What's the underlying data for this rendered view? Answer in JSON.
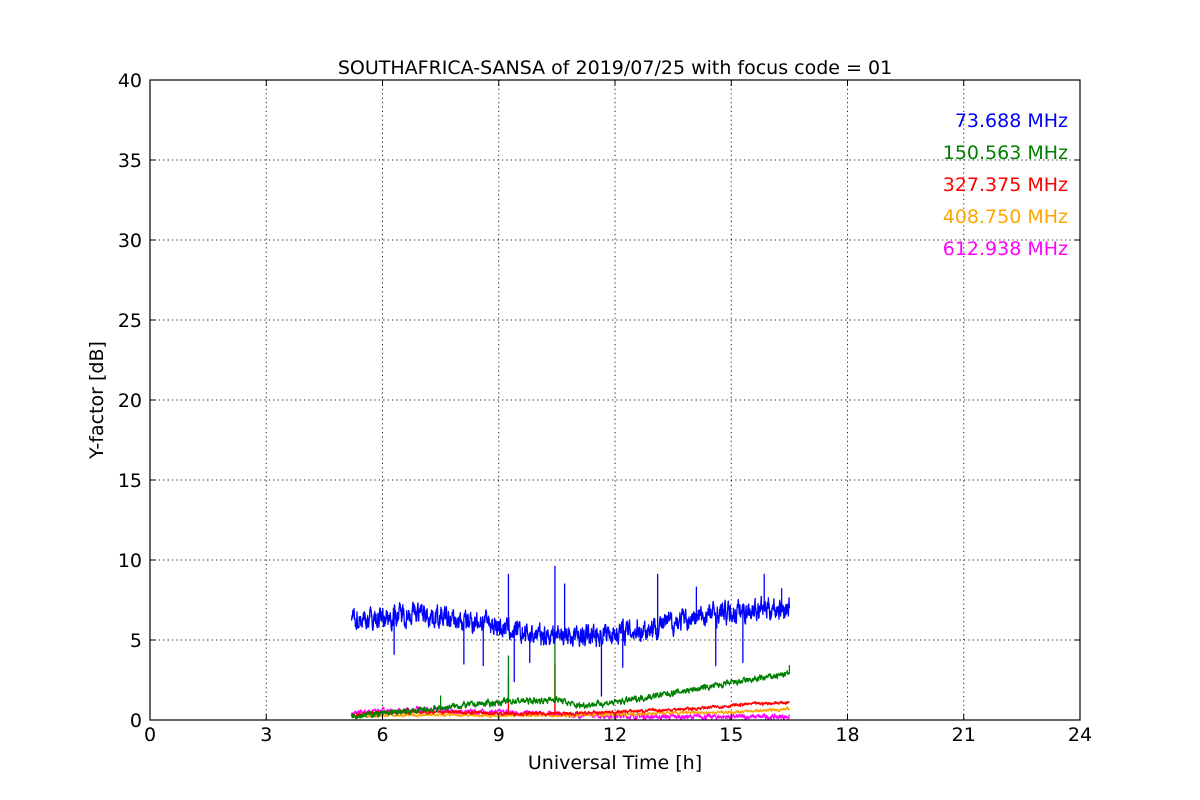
{
  "chart_data": {
    "type": "line",
    "title": "SOUTHAFRICA-SANSA of 2019/07/25 with focus code = 01",
    "xlabel": "Universal Time [h]",
    "ylabel": "Y-factor [dB]",
    "xlim": [
      0,
      24
    ],
    "ylim": [
      0,
      40
    ],
    "xticks": [
      0,
      3,
      6,
      9,
      12,
      15,
      18,
      21,
      24
    ],
    "yticks": [
      0,
      5,
      10,
      15,
      20,
      25,
      30,
      35,
      40
    ],
    "xtick_labels": [
      "0",
      "3",
      "6",
      "9",
      "12",
      "15",
      "18",
      "21",
      "24"
    ],
    "ytick_labels": [
      "0",
      "5",
      "10",
      "15",
      "20",
      "25",
      "30",
      "35",
      "40"
    ],
    "grid": true,
    "legend_position": "top-right",
    "series": [
      {
        "name": "73.688 MHz",
        "color": "#0000ff",
        "x": [
          5.2,
          5.5,
          6.0,
          6.5,
          7.0,
          7.5,
          8.0,
          8.5,
          9.0,
          9.5,
          10.0,
          10.5,
          11.0,
          11.5,
          12.0,
          12.5,
          13.0,
          13.5,
          14.0,
          14.5,
          15.0,
          15.5,
          16.0,
          16.5
        ],
        "y": [
          6.4,
          6.3,
          6.4,
          6.6,
          6.7,
          6.4,
          6.1,
          6.2,
          5.9,
          5.4,
          5.3,
          5.4,
          5.2,
          5.3,
          5.5,
          5.6,
          5.8,
          6.1,
          6.3,
          6.6,
          6.7,
          6.9,
          7.0,
          7.0
        ],
        "spikes": [
          {
            "x": 6.3,
            "y": 4.1
          },
          {
            "x": 8.1,
            "y": 3.5
          },
          {
            "x": 8.6,
            "y": 3.4
          },
          {
            "x": 9.25,
            "y": 9.1
          },
          {
            "x": 9.4,
            "y": 2.4
          },
          {
            "x": 9.8,
            "y": 3.6
          },
          {
            "x": 10.45,
            "y": 9.6
          },
          {
            "x": 10.7,
            "y": 8.5
          },
          {
            "x": 11.65,
            "y": 1.5
          },
          {
            "x": 12.2,
            "y": 3.3
          },
          {
            "x": 13.1,
            "y": 9.1
          },
          {
            "x": 14.1,
            "y": 8.3
          },
          {
            "x": 14.6,
            "y": 3.4
          },
          {
            "x": 15.3,
            "y": 3.6
          },
          {
            "x": 15.85,
            "y": 9.1
          },
          {
            "x": 16.3,
            "y": 8.2
          }
        ]
      },
      {
        "name": "150.563 MHz",
        "color": "#008000",
        "x": [
          5.2,
          6.0,
          7.0,
          8.0,
          8.5,
          9.0,
          9.5,
          10.0,
          10.5,
          11.0,
          12.0,
          12.5,
          13.0,
          13.5,
          14.0,
          14.5,
          15.0,
          15.5,
          16.0,
          16.5
        ],
        "y": [
          0.3,
          0.4,
          0.6,
          0.9,
          1.0,
          1.1,
          1.2,
          1.2,
          1.3,
          0.9,
          1.1,
          1.3,
          1.5,
          1.7,
          1.9,
          2.1,
          2.3,
          2.5,
          2.7,
          2.9
        ],
        "spikes": [
          {
            "x": 7.5,
            "y": 1.5
          },
          {
            "x": 9.25,
            "y": 4.0
          },
          {
            "x": 10.45,
            "y": 5.0
          },
          {
            "x": 16.5,
            "y": 3.4
          }
        ]
      },
      {
        "name": "327.375 MHz",
        "color": "#ff0000",
        "x": [
          5.2,
          6.0,
          7.0,
          8.0,
          9.0,
          10.0,
          11.0,
          12.0,
          12.5,
          13.0,
          13.5,
          14.0,
          14.5,
          15.0,
          15.5,
          16.0,
          16.5
        ],
        "y": [
          0.3,
          0.5,
          0.5,
          0.5,
          0.4,
          0.4,
          0.4,
          0.5,
          0.55,
          0.6,
          0.65,
          0.7,
          0.8,
          0.9,
          1.0,
          1.05,
          1.1
        ],
        "spikes": [
          {
            "x": 9.25,
            "y": 2.6
          },
          {
            "x": 10.45,
            "y": 3.5
          }
        ]
      },
      {
        "name": "408.750 MHz",
        "color": "#ffa500",
        "x": [
          5.2,
          6.0,
          7.0,
          8.0,
          9.0,
          10.0,
          11.0,
          12.0,
          13.0,
          14.0,
          15.0,
          16.0,
          16.5
        ],
        "y": [
          0.2,
          0.3,
          0.3,
          0.3,
          0.25,
          0.3,
          0.3,
          0.35,
          0.4,
          0.45,
          0.5,
          0.6,
          0.7
        ],
        "spikes": [
          {
            "x": 9.25,
            "y": 2.8
          },
          {
            "x": 10.45,
            "y": 2.6
          }
        ]
      },
      {
        "name": "612.938 MHz",
        "color": "#ff00ff",
        "x": [
          5.2,
          6.0,
          6.5,
          7.0,
          7.5,
          8.0,
          9.0,
          10.0,
          11.0,
          12.0,
          13.0,
          14.0,
          15.0,
          16.0,
          16.5
        ],
        "y": [
          0.4,
          0.6,
          0.5,
          0.7,
          0.6,
          0.5,
          0.5,
          0.4,
          0.3,
          0.25,
          0.2,
          0.2,
          0.2,
          0.2,
          0.2
        ],
        "spikes": [
          {
            "x": 10.45,
            "y": 1.2
          }
        ]
      }
    ]
  }
}
